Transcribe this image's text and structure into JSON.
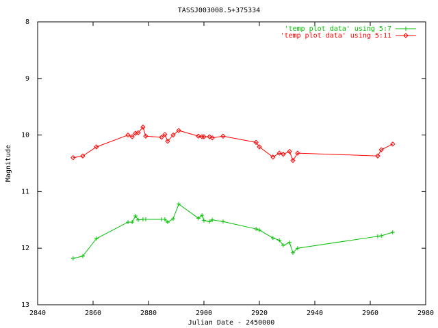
{
  "chart_data": {
    "type": "line",
    "title": "TASSJ003008.5+375334",
    "xlabel": "Julian Date - 2450000",
    "ylabel": "Magnitude",
    "x": [
      2852.8,
      2856.3,
      2861.2,
      2872.6,
      2874.1,
      2875.3,
      2876.3,
      2878.0,
      2879.0,
      2884.7,
      2885.9,
      2886.9,
      2888.9,
      2890.9,
      2898.0,
      2899.3,
      2900.0,
      2902.0,
      2903.0,
      2906.9,
      2918.8,
      2920.0,
      2924.9,
      2927.2,
      2928.6,
      2930.9,
      2932.1,
      2933.8,
      2962.7,
      2964.0,
      2968.1
    ],
    "series": [
      {
        "name": "'temp plot data' using 5:7",
        "color": "#00c000",
        "marker": "plus",
        "values": [
          12.18,
          12.14,
          11.83,
          11.54,
          11.54,
          11.43,
          11.5,
          11.49,
          11.49,
          11.49,
          11.49,
          11.54,
          11.48,
          11.22,
          11.47,
          11.42,
          11.51,
          11.53,
          11.5,
          11.53,
          11.66,
          11.68,
          11.82,
          11.86,
          11.95,
          11.9,
          12.08,
          12.0,
          11.79,
          11.78,
          11.72
        ]
      },
      {
        "name": "'temp plot data' using 5:11",
        "color": "#ff0000",
        "marker": "diamond",
        "values": [
          10.4,
          10.37,
          10.21,
          10.0,
          10.03,
          9.97,
          9.96,
          9.86,
          10.02,
          10.04,
          9.99,
          10.11,
          10.0,
          9.92,
          10.02,
          10.03,
          10.03,
          10.03,
          10.05,
          10.02,
          10.13,
          10.21,
          10.39,
          10.32,
          10.34,
          10.29,
          10.45,
          10.32,
          10.37,
          10.26,
          10.16
        ]
      }
    ],
    "xlim": [
      2840,
      2980
    ],
    "xticks": [
      2840,
      2860,
      2880,
      2900,
      2920,
      2940,
      2960,
      2980
    ],
    "ylim": [
      13,
      8
    ],
    "yticks": [
      8,
      9,
      10,
      11,
      12,
      13
    ]
  }
}
